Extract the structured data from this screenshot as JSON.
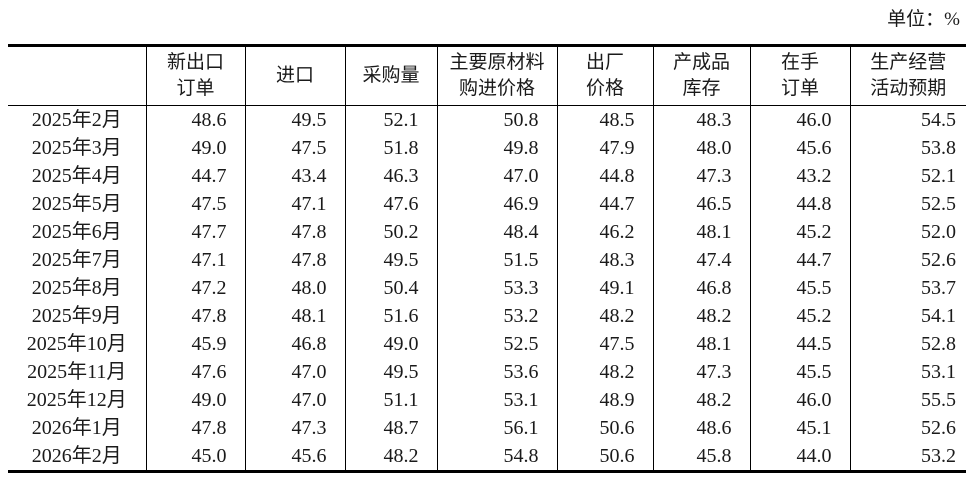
{
  "unit_label": "单位：%",
  "chart_data": {
    "type": "table",
    "columns": [
      "",
      "新出口\n订单",
      "进口",
      "采购量",
      "主要原材料\n购进价格",
      "出厂\n价格",
      "产成品\n库存",
      "在手\n订单",
      "生产经营\n活动预期"
    ],
    "rows": [
      {
        "label": "2025年2月",
        "values": [
          "48.6",
          "49.5",
          "52.1",
          "50.8",
          "48.5",
          "48.3",
          "46.0",
          "54.5"
        ]
      },
      {
        "label": "2025年3月",
        "values": [
          "49.0",
          "47.5",
          "51.8",
          "49.8",
          "47.9",
          "48.0",
          "45.6",
          "53.8"
        ]
      },
      {
        "label": "2025年4月",
        "values": [
          "44.7",
          "43.4",
          "46.3",
          "47.0",
          "44.8",
          "47.3",
          "43.2",
          "52.1"
        ]
      },
      {
        "label": "2025年5月",
        "values": [
          "47.5",
          "47.1",
          "47.6",
          "46.9",
          "44.7",
          "46.5",
          "44.8",
          "52.5"
        ]
      },
      {
        "label": "2025年6月",
        "values": [
          "47.7",
          "47.8",
          "50.2",
          "48.4",
          "46.2",
          "48.1",
          "45.2",
          "52.0"
        ]
      },
      {
        "label": "2025年7月",
        "values": [
          "47.1",
          "47.8",
          "49.5",
          "51.5",
          "48.3",
          "47.4",
          "44.7",
          "52.6"
        ]
      },
      {
        "label": "2025年8月",
        "values": [
          "47.2",
          "48.0",
          "50.4",
          "53.3",
          "49.1",
          "46.8",
          "45.5",
          "53.7"
        ]
      },
      {
        "label": "2025年9月",
        "values": [
          "47.8",
          "48.1",
          "51.6",
          "53.2",
          "48.2",
          "48.2",
          "45.2",
          "54.1"
        ]
      },
      {
        "label": "2025年10月",
        "values": [
          "45.9",
          "46.8",
          "49.0",
          "52.5",
          "47.5",
          "48.1",
          "44.5",
          "52.8"
        ]
      },
      {
        "label": "2025年11月",
        "values": [
          "47.6",
          "47.0",
          "49.5",
          "53.6",
          "48.2",
          "47.3",
          "45.5",
          "53.1"
        ]
      },
      {
        "label": "2025年12月",
        "values": [
          "49.0",
          "47.0",
          "51.1",
          "53.1",
          "48.9",
          "48.2",
          "46.0",
          "55.5"
        ]
      },
      {
        "label": "2026年1月",
        "values": [
          "47.8",
          "47.3",
          "48.7",
          "56.1",
          "50.6",
          "48.6",
          "45.1",
          "52.6"
        ]
      },
      {
        "label": "2026年2月",
        "values": [
          "45.0",
          "45.6",
          "48.2",
          "54.8",
          "50.6",
          "45.8",
          "44.0",
          "53.2"
        ]
      }
    ],
    "colors": {
      "text": "#1a1a1a",
      "border": "#000000",
      "background": "#ffffff"
    }
  }
}
